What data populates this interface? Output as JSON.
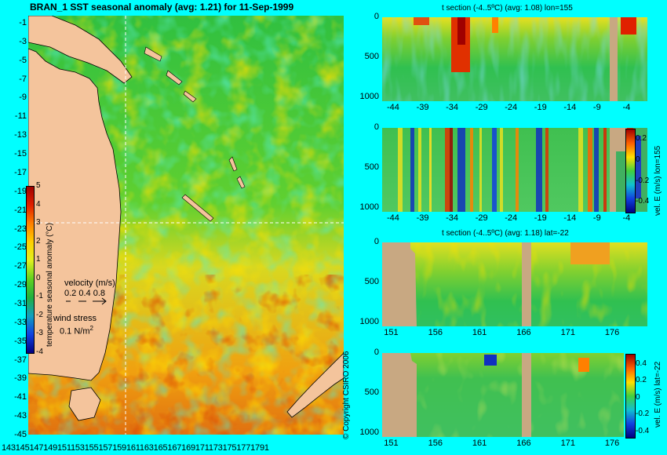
{
  "map": {
    "title": "BRAN_1  SST seasonal anomaly (avg: 1.21) for 11-Sep-1999",
    "lat_ticks": [
      "-1",
      "-3",
      "-5",
      "-7",
      "-9",
      "-11",
      "-13",
      "-15",
      "-17",
      "-19",
      "-21",
      "-23",
      "-25",
      "-27",
      "-29",
      "-31",
      "-33",
      "-35",
      "-37",
      "-39",
      "-41",
      "-43",
      "-45"
    ],
    "lon_ticks_label": "1431451471491511531551571591611631651671691711731751771791",
    "colorbar_label": "temperature seasonal anomaly (°C)",
    "colorbar_ticks": [
      "5",
      "4",
      "3",
      "2",
      "1",
      "0",
      "-1",
      "-2",
      "-3",
      "-4"
    ],
    "velocity_label": "velocity (m/s)",
    "velocity_scale": "0.2 0.4 0.8",
    "wind_label": "wind stress",
    "wind_scale": "0.1 N/m",
    "wind_scale_sup": "2",
    "copyright": "© Copyright CSIRO 2006"
  },
  "panel1": {
    "title": "t section (-4..5ºC) (avg: 1.08) lon=155",
    "y_ticks": [
      "0",
      "500",
      "1000"
    ],
    "x_ticks": [
      "-44",
      "-39",
      "-34",
      "-29",
      "-24",
      "-19",
      "-14",
      "-9",
      "-4"
    ]
  },
  "panel2": {
    "y_ticks": [
      "0",
      "500",
      "1000"
    ],
    "x_ticks": [
      "-44",
      "-39",
      "-34",
      "-29",
      "-24",
      "-19",
      "-14",
      "-9",
      "-4"
    ],
    "side_label": "vel. E (m/s) lon=155",
    "cb_ticks": [
      "0.2",
      "0",
      "-0.2",
      "-0.4"
    ]
  },
  "panel3": {
    "title": "t section (-4..5ºC) (avg: 1.18) lat=-22",
    "y_ticks": [
      "0",
      "500",
      "1000"
    ],
    "x_ticks": [
      "151",
      "156",
      "161",
      "166",
      "171",
      "176"
    ]
  },
  "panel4": {
    "y_ticks": [
      "0",
      "500",
      "1000"
    ],
    "x_ticks": [
      "151",
      "156",
      "161",
      "166",
      "171",
      "176"
    ],
    "side_label": "vel. E (m/s) lat=-22",
    "cb_ticks": [
      "0.4",
      "0.2",
      "0",
      "-0.2",
      "-0.4"
    ]
  },
  "colors": {
    "background": "#00ffff",
    "land": "#f4c49c",
    "land_section": "#c8a882",
    "anomaly_base": "#3cc83c"
  },
  "chart_data": [
    {
      "type": "heatmap",
      "title": "BRAN_1  SST seasonal anomaly (avg: 1.21) for 11-Sep-1999",
      "xlabel": "",
      "ylabel": "",
      "xlim": [
        143,
        180
      ],
      "ylim": [
        -45,
        0
      ],
      "colorbar": {
        "label": "temperature seasonal anomaly (°C)",
        "range": [
          -4,
          5
        ]
      },
      "average": 1.21
    },
    {
      "type": "heatmap",
      "title": "t section (-4..5ºC) (avg: 1.08) lon=155",
      "xlim": [
        -46,
        -1
      ],
      "ylim": [
        1050,
        0
      ],
      "average": 1.08
    },
    {
      "type": "heatmap",
      "title": "",
      "xlim": [
        -46,
        -1
      ],
      "ylim": [
        1050,
        0
      ],
      "colorbar": {
        "label": "vel. E (m/s) lon=155",
        "range": [
          -0.4,
          0.4
        ]
      }
    },
    {
      "type": "heatmap",
      "title": "t section (-4..5ºC) (avg: 1.18) lat=-22",
      "xlim": [
        150,
        180
      ],
      "ylim": [
        1050,
        0
      ],
      "average": 1.18
    },
    {
      "type": "heatmap",
      "title": "",
      "xlim": [
        150,
        180
      ],
      "ylim": [
        1050,
        0
      ],
      "colorbar": {
        "label": "vel. E (m/s) lat=-22",
        "range": [
          -0.4,
          0.4
        ]
      }
    }
  ]
}
